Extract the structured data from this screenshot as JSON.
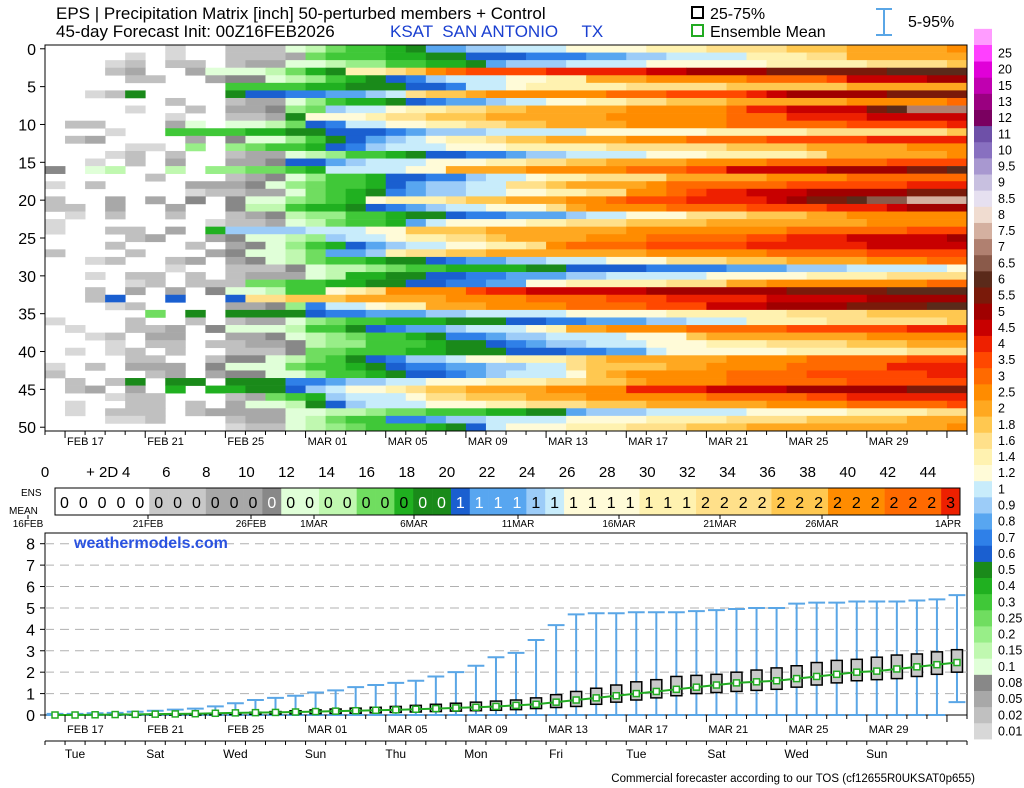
{
  "header": {
    "title": "EPS | Precipitation Matrix [inch]  50-perturbed members + Control",
    "subtitle": "45-day Forecast Init: 00Z16FEB2026",
    "station": "KSAT  SAN ANTONIO     TX",
    "legend": {
      "box": "25-75%",
      "mean": "Ensemble Mean",
      "whisker": "5-95%"
    }
  },
  "footer": {
    "watermark": "weathermodels.com",
    "terms": "Commercial forecaster according to our TOS (cf12655R0UKSAT0p655)"
  },
  "colors": {
    "box_fill": "#c8c8c8",
    "mean_line": "#22aa22",
    "whisker": "#5aa6e6",
    "grid": "#b0b0b0"
  },
  "chart_data": [
    {
      "type": "heatmap",
      "name": "Precipitation Matrix",
      "y_ticks": [
        "0",
        "5",
        "10",
        "15",
        "20",
        "25",
        "30",
        "35",
        "40",
        "45",
        "50"
      ],
      "x_ticks": [
        "FEB 17",
        "FEB 21",
        "FEB 25",
        "MAR 01",
        "MAR 05",
        "MAR 09",
        "MAR 13",
        "MAR 17",
        "MAR 21",
        "MAR 25",
        "MAR 29"
      ],
      "ylim": [
        0,
        50
      ],
      "colorbar": {
        "levels": [
          "0.01",
          "0.02",
          "0.05",
          "0.08",
          "0.1",
          "0.15",
          "0.2",
          "0.25",
          "0.3",
          "0.4",
          "0.5",
          "0.6",
          "0.7",
          "0.8",
          "0.9",
          "1",
          "1.2",
          "1.4",
          "1.6",
          "1.8",
          "2",
          "2.5",
          "3",
          "3.5",
          "4",
          "4.5",
          "5",
          "5.5",
          "6",
          "6.5",
          "7",
          "7.5",
          "8",
          "8.5",
          "9",
          "9.5",
          "10",
          "11",
          "12",
          "13",
          "15",
          "20",
          "25"
        ],
        "colors": [
          "#d8d8d8",
          "#c0c0c0",
          "#a8a8a8",
          "#888888",
          "#e0ffd8",
          "#c0f8b0",
          "#98ee88",
          "#70dd60",
          "#40c838",
          "#20b020",
          "#1a8a1a",
          "#1a5fd0",
          "#2f80e8",
          "#58a6f0",
          "#9cccf8",
          "#c8ecfb",
          "#fffbd8",
          "#fff2b0",
          "#ffe08a",
          "#ffc850",
          "#ffa820",
          "#ff8c00",
          "#ff6a00",
          "#ff4800",
          "#ee2000",
          "#c80000",
          "#a00000",
          "#7a1a0a",
          "#5a2a1a",
          "#8a5a4a",
          "#b08070",
          "#d4b0a0",
          "#f0dcd0",
          "#e6e0f0",
          "#c8c0e0",
          "#a898d0",
          "#8870c0",
          "#6e50a8",
          "#7a0060",
          "#9a0080",
          "#c000b0",
          "#e000d8",
          "#ff40ff",
          "#ff9cff"
        ]
      }
    },
    {
      "type": "table",
      "name": "ENS MEAN",
      "row_label_1": "ENS",
      "row_label_2": "MEAN",
      "day_ticks": [
        "0",
        "+ 2D",
        "4",
        "6",
        "8",
        "10",
        "12",
        "14",
        "16",
        "18",
        "20",
        "22",
        "24",
        "26",
        "28",
        "30",
        "32",
        "34",
        "36",
        "38",
        "40",
        "42",
        "44"
      ],
      "date_ticks": [
        "16FEB",
        "21FEB",
        "26FEB",
        "1MAR",
        "6MAR",
        "11MAR",
        "16MAR",
        "21MAR",
        "26MAR",
        "1APR"
      ],
      "values": [
        0,
        0,
        0,
        0,
        0,
        0,
        0,
        0,
        0,
        0,
        0,
        0,
        0,
        0,
        0,
        0,
        0,
        0,
        0,
        0,
        0,
        1,
        1,
        1,
        1,
        1,
        1,
        1,
        1,
        1,
        1,
        1,
        1,
        1,
        2,
        2,
        2,
        2,
        2,
        2,
        2,
        2,
        2,
        2,
        2,
        2,
        2,
        3
      ]
    },
    {
      "type": "box",
      "name": "Cumulative precipitation distribution",
      "ylim": [
        0,
        8.5
      ],
      "y_ticks": [
        "0",
        "1",
        "2",
        "3",
        "4",
        "5",
        "6",
        "7",
        "8"
      ],
      "x_ticks": [
        "FEB 17",
        "FEB 21",
        "FEB 25",
        "MAR 01",
        "MAR 05",
        "MAR 09",
        "MAR 13",
        "MAR 17",
        "MAR 21",
        "MAR 25",
        "MAR 29"
      ],
      "weekday_ticks": [
        "Tue",
        "Sat",
        "Wed",
        "Sun",
        "Thu",
        "Mon",
        "Fri",
        "Tue",
        "Sat",
        "Wed",
        "Sun"
      ],
      "mean": [
        0,
        0,
        0.01,
        0.02,
        0.03,
        0.04,
        0.05,
        0.06,
        0.08,
        0.1,
        0.11,
        0.12,
        0.14,
        0.16,
        0.18,
        0.2,
        0.22,
        0.24,
        0.27,
        0.3,
        0.33,
        0.36,
        0.4,
        0.45,
        0.5,
        0.6,
        0.7,
        0.8,
        0.9,
        1.0,
        1.1,
        1.2,
        1.3,
        1.4,
        1.5,
        1.55,
        1.6,
        1.7,
        1.8,
        1.9,
        2.0,
        2.05,
        2.15,
        2.25,
        2.35,
        2.45
      ],
      "q25": [
        0,
        0,
        0,
        0,
        0,
        0,
        0,
        0,
        0.01,
        0.02,
        0.03,
        0.04,
        0.05,
        0.06,
        0.07,
        0.08,
        0.1,
        0.12,
        0.14,
        0.16,
        0.18,
        0.2,
        0.22,
        0.25,
        0.3,
        0.35,
        0.4,
        0.5,
        0.6,
        0.7,
        0.8,
        0.9,
        1.0,
        1.05,
        1.1,
        1.15,
        1.2,
        1.3,
        1.4,
        1.5,
        1.6,
        1.65,
        1.7,
        1.8,
        1.9,
        2.0
      ],
      "q75": [
        0,
        0,
        0.01,
        0.02,
        0.03,
        0.04,
        0.05,
        0.06,
        0.08,
        0.1,
        0.13,
        0.16,
        0.2,
        0.24,
        0.28,
        0.32,
        0.36,
        0.4,
        0.45,
        0.5,
        0.55,
        0.6,
        0.65,
        0.7,
        0.8,
        0.95,
        1.1,
        1.25,
        1.4,
        1.55,
        1.65,
        1.8,
        1.85,
        1.9,
        2.0,
        2.1,
        2.2,
        2.3,
        2.45,
        2.55,
        2.6,
        2.7,
        2.8,
        2.85,
        2.95,
        3.05
      ],
      "p95": [
        0.05,
        0.05,
        0.08,
        0.1,
        0.15,
        0.2,
        0.25,
        0.3,
        0.4,
        0.55,
        0.7,
        0.8,
        0.9,
        1.05,
        1.15,
        1.3,
        1.4,
        1.5,
        1.6,
        1.8,
        2.0,
        2.3,
        2.7,
        2.9,
        3.5,
        4.2,
        4.7,
        4.75,
        4.75,
        4.8,
        4.8,
        4.8,
        4.85,
        4.9,
        4.95,
        5.0,
        5.0,
        5.2,
        5.25,
        5.25,
        5.3,
        5.3,
        5.3,
        5.35,
        5.4,
        5.6
      ],
      "p5": [
        0,
        0,
        0,
        0,
        0,
        0,
        0,
        0,
        0,
        0,
        0,
        0,
        0,
        0,
        0,
        0,
        0,
        0,
        0,
        0,
        0,
        0,
        0,
        0,
        0,
        0,
        0,
        0,
        0,
        0,
        0,
        0,
        0,
        0,
        0,
        0,
        0,
        0,
        0,
        0,
        0,
        0,
        0,
        0,
        0,
        0.6
      ]
    }
  ]
}
